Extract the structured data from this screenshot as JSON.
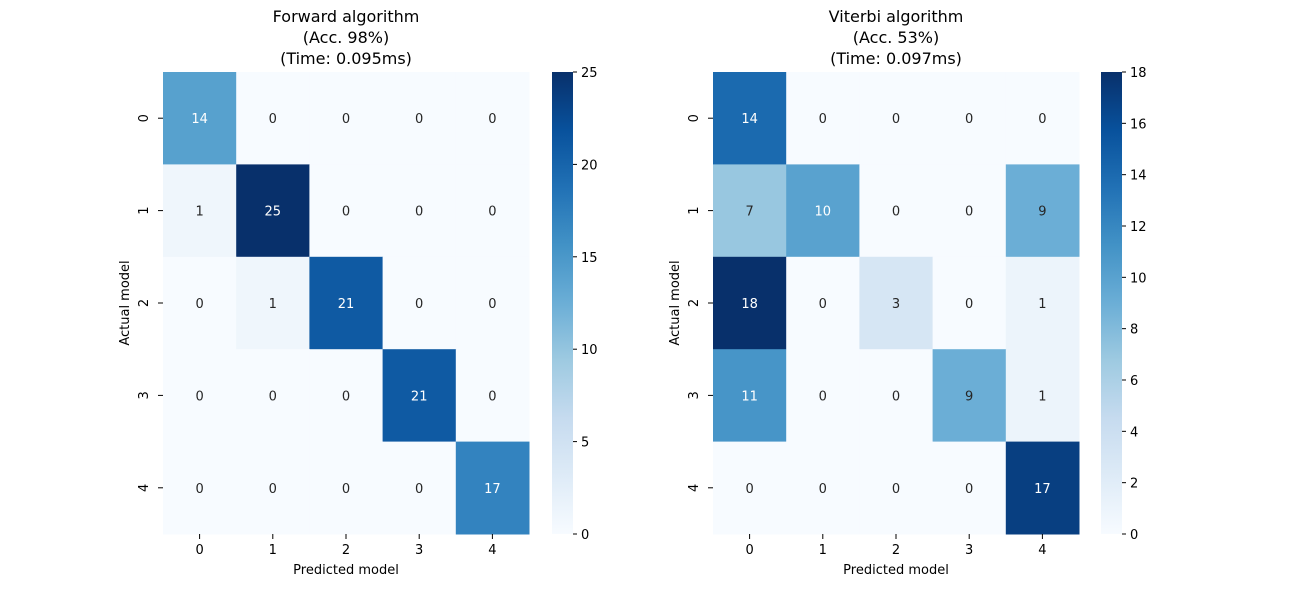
{
  "chart_data": [
    {
      "type": "heatmap",
      "title": [
        "Forward algorithm",
        "(Acc. 98%)",
        "(Time: 0.095ms)"
      ],
      "xlabel": "Predicted model",
      "ylabel": "Actual model",
      "x_categories": [
        "0",
        "1",
        "2",
        "3",
        "4"
      ],
      "y_categories": [
        "0",
        "1",
        "2",
        "3",
        "4"
      ],
      "values": [
        [
          14,
          0,
          0,
          0,
          0
        ],
        [
          1,
          25,
          0,
          0,
          0
        ],
        [
          0,
          1,
          21,
          0,
          0
        ],
        [
          0,
          0,
          0,
          21,
          0
        ],
        [
          0,
          0,
          0,
          0,
          17
        ]
      ],
      "colormap": "Blues",
      "vmin": 0,
      "vmax": 25,
      "colorbar_ticks": [
        0,
        5,
        10,
        15,
        20,
        25
      ]
    },
    {
      "type": "heatmap",
      "title": [
        "Viterbi algorithm",
        "(Acc. 53%)",
        "(Time: 0.097ms)"
      ],
      "xlabel": "Predicted model",
      "ylabel": "Actual model",
      "x_categories": [
        "0",
        "1",
        "2",
        "3",
        "4"
      ],
      "y_categories": [
        "0",
        "1",
        "2",
        "3",
        "4"
      ],
      "values": [
        [
          14,
          0,
          0,
          0,
          0
        ],
        [
          7,
          10,
          0,
          0,
          9
        ],
        [
          18,
          0,
          3,
          0,
          1
        ],
        [
          11,
          0,
          0,
          9,
          1
        ],
        [
          0,
          0,
          0,
          0,
          17
        ]
      ],
      "colormap": "Blues",
      "vmin": 0,
      "vmax": 18,
      "colorbar_ticks": [
        0,
        2,
        4,
        6,
        8,
        10,
        12,
        14,
        16,
        18
      ]
    }
  ]
}
